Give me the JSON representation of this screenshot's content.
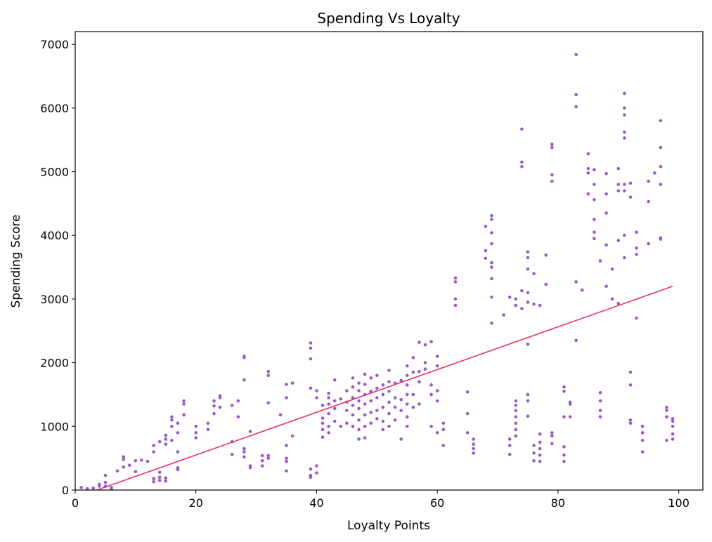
{
  "chart_data": {
    "type": "scatter",
    "title": "Spending Vs Loyalty",
    "xlabel": "Loyalty Points",
    "ylabel": "Spending Score",
    "xlim": [
      0,
      104
    ],
    "ylim": [
      0,
      7200
    ],
    "xticks": [
      0,
      20,
      40,
      60,
      80,
      100
    ],
    "yticks": [
      0,
      1000,
      2000,
      3000,
      4000,
      5000,
      6000,
      7000
    ],
    "grid": false,
    "point_color": "#9a57cf",
    "line_color": "#e8336a",
    "trend_line": {
      "x": [
        3,
        99
      ],
      "y": [
        -20,
        3200
      ]
    },
    "points": [
      [
        1,
        40
      ],
      [
        2,
        20
      ],
      [
        3,
        30
      ],
      [
        4,
        60
      ],
      [
        4,
        90
      ],
      [
        5,
        120
      ],
      [
        5,
        230
      ],
      [
        5,
        60
      ],
      [
        6,
        40
      ],
      [
        6,
        10
      ],
      [
        7,
        300
      ],
      [
        8,
        360
      ],
      [
        8,
        480
      ],
      [
        8,
        520
      ],
      [
        9,
        390
      ],
      [
        10,
        290
      ],
      [
        10,
        460
      ],
      [
        11,
        470
      ],
      [
        12,
        450
      ],
      [
        13,
        130
      ],
      [
        13,
        180
      ],
      [
        13,
        600
      ],
      [
        13,
        700
      ],
      [
        14,
        150
      ],
      [
        14,
        200
      ],
      [
        14,
        280
      ],
      [
        14,
        760
      ],
      [
        15,
        140
      ],
      [
        15,
        190
      ],
      [
        15,
        720
      ],
      [
        15,
        800
      ],
      [
        15,
        860
      ],
      [
        16,
        780
      ],
      [
        16,
        1000
      ],
      [
        16,
        1100
      ],
      [
        16,
        1150
      ],
      [
        17,
        320
      ],
      [
        17,
        350
      ],
      [
        17,
        600
      ],
      [
        17,
        900
      ],
      [
        17,
        1050
      ],
      [
        18,
        1350
      ],
      [
        18,
        1400
      ],
      [
        18,
        1180
      ],
      [
        20,
        1000
      ],
      [
        20,
        900
      ],
      [
        20,
        820
      ],
      [
        22,
        950
      ],
      [
        22,
        1050
      ],
      [
        23,
        1200
      ],
      [
        23,
        1320
      ],
      [
        23,
        1400
      ],
      [
        24,
        1300
      ],
      [
        24,
        1450
      ],
      [
        24,
        1480
      ],
      [
        26,
        560
      ],
      [
        26,
        760
      ],
      [
        26,
        1330
      ],
      [
        27,
        1150
      ],
      [
        27,
        1400
      ],
      [
        28,
        600
      ],
      [
        28,
        650
      ],
      [
        28,
        520
      ],
      [
        28,
        2080
      ],
      [
        28,
        2100
      ],
      [
        28,
        1730
      ],
      [
        29,
        380
      ],
      [
        29,
        350
      ],
      [
        29,
        920
      ],
      [
        31,
        380
      ],
      [
        31,
        460
      ],
      [
        31,
        540
      ],
      [
        32,
        500
      ],
      [
        32,
        540
      ],
      [
        32,
        1370
      ],
      [
        32,
        1800
      ],
      [
        32,
        1860
      ],
      [
        34,
        1180
      ],
      [
        35,
        300
      ],
      [
        35,
        450
      ],
      [
        35,
        500
      ],
      [
        35,
        700
      ],
      [
        35,
        1450
      ],
      [
        35,
        1660
      ],
      [
        36,
        850
      ],
      [
        36,
        1680
      ],
      [
        39,
        200
      ],
      [
        39,
        230
      ],
      [
        39,
        330
      ],
      [
        39,
        1600
      ],
      [
        39,
        2060
      ],
      [
        39,
        2230
      ],
      [
        39,
        2310
      ],
      [
        40,
        270
      ],
      [
        40,
        380
      ],
      [
        40,
        1560
      ],
      [
        40,
        1450
      ],
      [
        41,
        1330
      ],
      [
        41,
        1130
      ],
      [
        41,
        1050
      ],
      [
        41,
        950
      ],
      [
        41,
        830
      ],
      [
        42,
        900
      ],
      [
        42,
        1000
      ],
      [
        42,
        1200
      ],
      [
        42,
        1350
      ],
      [
        42,
        1450
      ],
      [
        42,
        1520
      ],
      [
        43,
        1400
      ],
      [
        43,
        1280
      ],
      [
        43,
        1080
      ],
      [
        43,
        1730
      ],
      [
        44,
        1000
      ],
      [
        44,
        1430
      ],
      [
        45,
        1050
      ],
      [
        45,
        1250
      ],
      [
        45,
        1380
      ],
      [
        45,
        1560
      ],
      [
        46,
        1000
      ],
      [
        46,
        1180
      ],
      [
        46,
        1330
      ],
      [
        46,
        1450
      ],
      [
        46,
        1620
      ],
      [
        46,
        1760
      ],
      [
        47,
        800
      ],
      [
        47,
        950
      ],
      [
        47,
        1100
      ],
      [
        47,
        1280
      ],
      [
        47,
        1400
      ],
      [
        47,
        1560
      ],
      [
        47,
        1680
      ],
      [
        48,
        820
      ],
      [
        48,
        1000
      ],
      [
        48,
        1180
      ],
      [
        48,
        1350
      ],
      [
        48,
        1500
      ],
      [
        48,
        1660
      ],
      [
        48,
        1820
      ],
      [
        49,
        1050
      ],
      [
        49,
        1220
      ],
      [
        49,
        1400
      ],
      [
        49,
        1550
      ],
      [
        49,
        1760
      ],
      [
        50,
        1120
      ],
      [
        50,
        1250
      ],
      [
        50,
        1450
      ],
      [
        50,
        1600
      ],
      [
        50,
        1800
      ],
      [
        51,
        950
      ],
      [
        51,
        1080
      ],
      [
        51,
        1300
      ],
      [
        51,
        1500
      ],
      [
        51,
        1650
      ],
      [
        52,
        1000
      ],
      [
        52,
        1200
      ],
      [
        52,
        1380
      ],
      [
        52,
        1550
      ],
      [
        52,
        1700
      ],
      [
        52,
        1880
      ],
      [
        53,
        1100
      ],
      [
        53,
        1300
      ],
      [
        53,
        1450
      ],
      [
        53,
        1680
      ],
      [
        54,
        800
      ],
      [
        54,
        1250
      ],
      [
        54,
        1420
      ],
      [
        54,
        1720
      ],
      [
        55,
        1000
      ],
      [
        55,
        1150
      ],
      [
        55,
        1350
      ],
      [
        55,
        1500
      ],
      [
        55,
        1650
      ],
      [
        55,
        1800
      ],
      [
        55,
        1950
      ],
      [
        56,
        1300
      ],
      [
        56,
        1500
      ],
      [
        56,
        1850
      ],
      [
        56,
        2080
      ],
      [
        57,
        1350
      ],
      [
        57,
        1700
      ],
      [
        57,
        1860
      ],
      [
        57,
        2320
      ],
      [
        58,
        1900
      ],
      [
        58,
        2000
      ],
      [
        58,
        2280
      ],
      [
        59,
        1000
      ],
      [
        59,
        1500
      ],
      [
        59,
        1650
      ],
      [
        59,
        2330
      ],
      [
        60,
        900
      ],
      [
        60,
        1400
      ],
      [
        60,
        1560
      ],
      [
        60,
        1950
      ],
      [
        60,
        2100
      ],
      [
        61,
        700
      ],
      [
        61,
        950
      ],
      [
        61,
        1050
      ],
      [
        63,
        2900
      ],
      [
        63,
        3000
      ],
      [
        63,
        3270
      ],
      [
        63,
        3330
      ],
      [
        65,
        900
      ],
      [
        65,
        1200
      ],
      [
        65,
        1540
      ],
      [
        66,
        580
      ],
      [
        66,
        650
      ],
      [
        66,
        720
      ],
      [
        66,
        800
      ],
      [
        68,
        3640
      ],
      [
        68,
        3760
      ],
      [
        68,
        4140
      ],
      [
        69,
        2620
      ],
      [
        69,
        3030
      ],
      [
        69,
        3320
      ],
      [
        69,
        3500
      ],
      [
        69,
        3570
      ],
      [
        69,
        3870
      ],
      [
        69,
        4040
      ],
      [
        69,
        4250
      ],
      [
        69,
        4310
      ],
      [
        71,
        2750
      ],
      [
        72,
        560
      ],
      [
        72,
        700
      ],
      [
        72,
        800
      ],
      [
        72,
        3030
      ],
      [
        73,
        850
      ],
      [
        73,
        950
      ],
      [
        73,
        1050
      ],
      [
        73,
        1150
      ],
      [
        73,
        1250
      ],
      [
        73,
        1330
      ],
      [
        73,
        1400
      ],
      [
        73,
        2900
      ],
      [
        73,
        3000
      ],
      [
        74,
        2850
      ],
      [
        74,
        3130
      ],
      [
        74,
        5080
      ],
      [
        74,
        5150
      ],
      [
        74,
        5670
      ],
      [
        75,
        1160
      ],
      [
        75,
        1500
      ],
      [
        75,
        1400
      ],
      [
        75,
        2290
      ],
      [
        75,
        2950
      ],
      [
        75,
        3100
      ],
      [
        75,
        3470
      ],
      [
        75,
        3650
      ],
      [
        75,
        3740
      ],
      [
        76,
        460
      ],
      [
        76,
        580
      ],
      [
        76,
        700
      ],
      [
        76,
        2920
      ],
      [
        76,
        3400
      ],
      [
        77,
        450
      ],
      [
        77,
        550
      ],
      [
        77,
        650
      ],
      [
        77,
        750
      ],
      [
        77,
        880
      ],
      [
        77,
        2900
      ],
      [
        78,
        3230
      ],
      [
        78,
        3690
      ],
      [
        79,
        730
      ],
      [
        79,
        850
      ],
      [
        79,
        900
      ],
      [
        79,
        4850
      ],
      [
        79,
        4950
      ],
      [
        79,
        5380
      ],
      [
        79,
        5430
      ],
      [
        81,
        450
      ],
      [
        81,
        550
      ],
      [
        81,
        680
      ],
      [
        81,
        1150
      ],
      [
        81,
        1550
      ],
      [
        81,
        1620
      ],
      [
        82,
        1150
      ],
      [
        82,
        1350
      ],
      [
        82,
        1380
      ],
      [
        83,
        2350
      ],
      [
        83,
        3270
      ],
      [
        83,
        6020
      ],
      [
        83,
        6210
      ],
      [
        83,
        6840
      ],
      [
        84,
        3140
      ],
      [
        85,
        4650
      ],
      [
        85,
        4980
      ],
      [
        85,
        5050
      ],
      [
        85,
        5280
      ],
      [
        86,
        3950
      ],
      [
        86,
        4050
      ],
      [
        86,
        4250
      ],
      [
        86,
        4560
      ],
      [
        86,
        4800
      ],
      [
        86,
        5030
      ],
      [
        87,
        1150
      ],
      [
        87,
        1250
      ],
      [
        87,
        1400
      ],
      [
        87,
        1530
      ],
      [
        87,
        3600
      ],
      [
        88,
        3200
      ],
      [
        88,
        3850
      ],
      [
        88,
        4350
      ],
      [
        88,
        4650
      ],
      [
        88,
        4970
      ],
      [
        89,
        3000
      ],
      [
        89,
        3470
      ],
      [
        90,
        2930
      ],
      [
        90,
        3920
      ],
      [
        90,
        4700
      ],
      [
        90,
        4800
      ],
      [
        90,
        5050
      ],
      [
        91,
        3650
      ],
      [
        91,
        4000
      ],
      [
        91,
        4700
      ],
      [
        91,
        4800
      ],
      [
        91,
        5530
      ],
      [
        91,
        5620
      ],
      [
        91,
        5890
      ],
      [
        91,
        6000
      ],
      [
        91,
        6230
      ],
      [
        92,
        1050
      ],
      [
        92,
        1100
      ],
      [
        92,
        1650
      ],
      [
        92,
        1850
      ],
      [
        92,
        4600
      ],
      [
        92,
        4820
      ],
      [
        93,
        2700
      ],
      [
        93,
        3700
      ],
      [
        93,
        3800
      ],
      [
        93,
        4050
      ],
      [
        94,
        600
      ],
      [
        94,
        780
      ],
      [
        94,
        900
      ],
      [
        94,
        1000
      ],
      [
        95,
        3870
      ],
      [
        95,
        4530
      ],
      [
        95,
        4850
      ],
      [
        96,
        4980
      ],
      [
        97,
        3940
      ],
      [
        97,
        3960
      ],
      [
        97,
        4800
      ],
      [
        97,
        5080
      ],
      [
        97,
        5380
      ],
      [
        97,
        5800
      ],
      [
        98,
        780
      ],
      [
        98,
        1150
      ],
      [
        98,
        1250
      ],
      [
        98,
        1300
      ],
      [
        99,
        800
      ],
      [
        99,
        880
      ],
      [
        99,
        1000
      ],
      [
        99,
        1080
      ],
      [
        99,
        1120
      ]
    ]
  }
}
